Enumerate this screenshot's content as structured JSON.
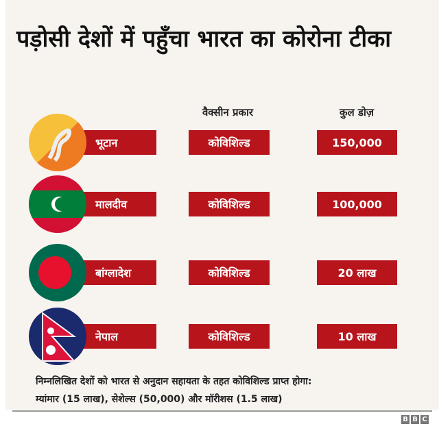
{
  "title": "पड़ोसी देशों में पहुँचा भारत का कोरोना टीका",
  "headers": {
    "vaccine": "वैक्सीन प्रकार",
    "doses": "कुल डोज़"
  },
  "rows": [
    {
      "country": "भूटान",
      "vaccine": "कोविशिल्ड",
      "doses": "150,000",
      "flag": "bhutan-flag"
    },
    {
      "country": "मालदीव",
      "vaccine": "कोविशिल्ड",
      "doses": "100,000",
      "flag": "maldives-flag"
    },
    {
      "country": "बांग्लादेश",
      "vaccine": "कोविशिल्ड",
      "doses": "20 लाख",
      "flag": "bangladesh-flag"
    },
    {
      "country": "नेपाल",
      "vaccine": "कोविशिल्ड",
      "doses": "10 लाख",
      "flag": "nepal-flag"
    }
  ],
  "note": {
    "line1": "निम्नलिखित देशों को भारत से अनुदान सहायता के तहत कोविशिल्ड प्राप्त होगा:",
    "line2": "म्यांमार (15 लाख), सेशेल्स (50,000) और मॉरीशस (1.5 लाख)"
  },
  "logo": [
    "B",
    "B",
    "C"
  ],
  "colors": {
    "bar": "#b8141c",
    "background": "#f7f3ef"
  }
}
